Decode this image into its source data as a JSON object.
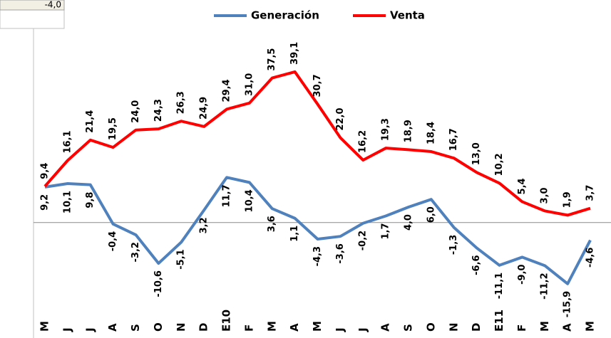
{
  "spreadsheet_cell": "-4,0",
  "chart_data": {
    "type": "line",
    "categories": [
      "M",
      "J",
      "J",
      "A",
      "S",
      "O",
      "N",
      "D",
      "E10",
      "F",
      "M",
      "A",
      "M",
      "J",
      "J",
      "A",
      "S",
      "O",
      "N",
      "D",
      "E11",
      "F",
      "M",
      "A",
      "M"
    ],
    "series": [
      {
        "name": "Generación",
        "color": "#4f81bd",
        "values": [
          9.2,
          10.1,
          9.8,
          -0.4,
          -3.2,
          -10.6,
          -5.1,
          3.2,
          11.7,
          10.4,
          3.6,
          1.1,
          -4.3,
          -3.6,
          -0.2,
          1.7,
          4.0,
          6.0,
          -1.3,
          -6.6,
          -11.1,
          -9.0,
          -11.2,
          -15.9,
          -4.6
        ],
        "value_labels": [
          "9,2",
          "10,1",
          "9,8",
          "-0,4",
          "-3,2",
          "-10,6",
          "-5,1",
          "3,2",
          "11,7",
          "10,4",
          "3,6",
          "1,1",
          "-4,3",
          "-3,6",
          "-0,2",
          "1,7",
          "4,0",
          "6,0",
          "-1,3",
          "-6,6",
          "-11,1",
          "-9,0",
          "-11,2",
          "-15,9",
          "-4,6"
        ]
      },
      {
        "name": "Venta",
        "color": "#ff0000",
        "values": [
          9.4,
          16.1,
          21.4,
          19.5,
          24.0,
          24.3,
          26.3,
          24.9,
          29.4,
          31.0,
          37.5,
          39.1,
          30.7,
          22.0,
          16.2,
          19.3,
          18.9,
          18.4,
          16.7,
          13.0,
          10.2,
          5.4,
          3.0,
          1.9,
          3.7
        ],
        "value_labels": [
          "9,4",
          "16,1",
          "21,4",
          "19,5",
          "24,0",
          "24,3",
          "26,3",
          "24,9",
          "29,4",
          "31,0",
          "37,5",
          "39,1",
          "30,7",
          "22,0",
          "16,2",
          "19,3",
          "18,9",
          "18,4",
          "16,7",
          "13,0",
          "10,2",
          "5,4",
          "3,0",
          "1,9",
          "3,7"
        ]
      }
    ],
    "ylim": [
      -20,
      45
    ],
    "legend": "top"
  }
}
